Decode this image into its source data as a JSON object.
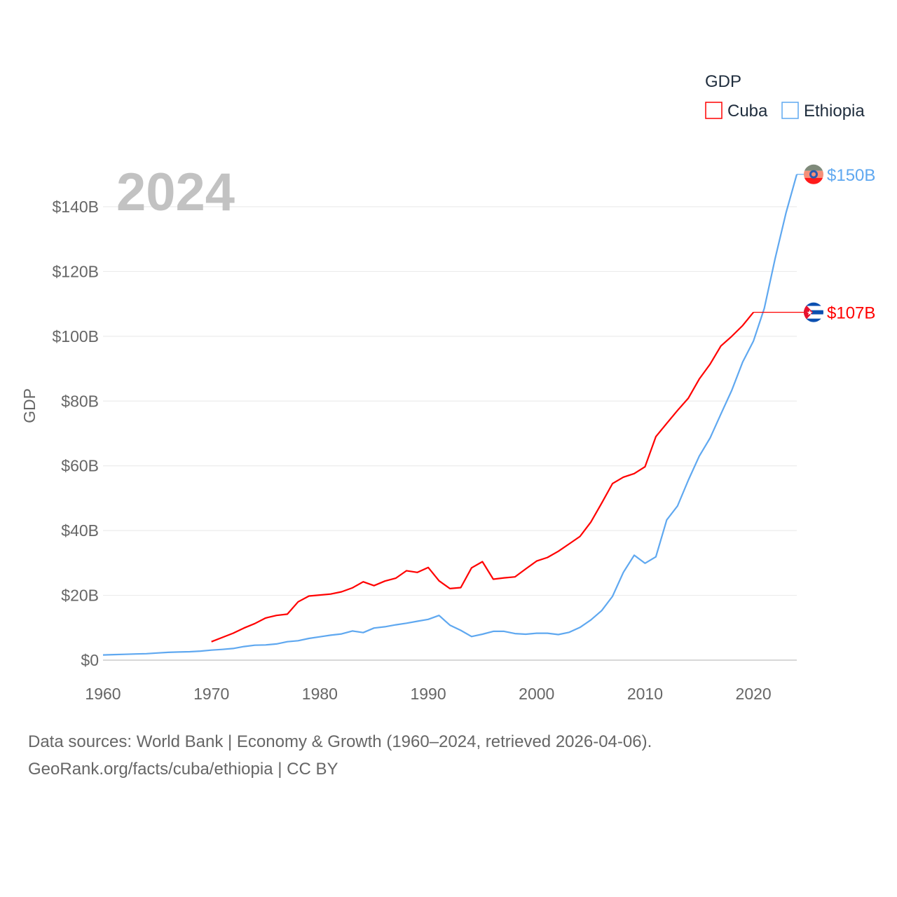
{
  "chart_data": {
    "type": "line",
    "title": "",
    "year_watermark": "2024",
    "xlabel": "",
    "ylabel": "GDP",
    "xlim": [
      1960,
      2024
    ],
    "ylim": [
      0,
      150
    ],
    "x_ticks": [
      "1960",
      "1970",
      "1980",
      "1990",
      "2000",
      "2010",
      "2020"
    ],
    "x_tick_values": [
      1960,
      1970,
      1980,
      1990,
      2000,
      2010,
      2020
    ],
    "y_ticks": [
      "$0",
      "$20B",
      "$40B",
      "$60B",
      "$80B",
      "$100B",
      "$120B",
      "$140B"
    ],
    "y_tick_values": [
      0,
      20,
      40,
      60,
      80,
      100,
      120,
      140
    ],
    "grid": true,
    "legend": {
      "title": "GDP",
      "placement": "top-right"
    },
    "series": [
      {
        "name": "Cuba",
        "color": "#ff0000",
        "end_label": "$107B",
        "flag": "cuba-flag",
        "x": [
          1970,
          1971,
          1972,
          1973,
          1974,
          1975,
          1976,
          1977,
          1978,
          1979,
          1980,
          1981,
          1982,
          1983,
          1984,
          1985,
          1986,
          1987,
          1988,
          1989,
          1990,
          1991,
          1992,
          1993,
          1994,
          1995,
          1996,
          1997,
          1998,
          1999,
          2000,
          2001,
          2002,
          2003,
          2004,
          2005,
          2006,
          2007,
          2008,
          2009,
          2010,
          2011,
          2012,
          2013,
          2014,
          2015,
          2016,
          2017,
          2018,
          2019,
          2020
        ],
        "values": [
          5.7,
          7.0,
          8.3,
          9.9,
          11.3,
          13.0,
          13.8,
          14.2,
          18.0,
          19.8,
          20.1,
          20.4,
          21.1,
          22.3,
          24.2,
          23.0,
          24.4,
          25.3,
          27.6,
          27.1,
          28.6,
          24.5,
          22.1,
          22.4,
          28.5,
          30.4,
          25.0,
          25.4,
          25.7,
          28.2,
          30.6,
          31.7,
          33.6,
          35.9,
          38.2,
          42.6,
          48.5,
          54.5,
          56.5,
          57.6,
          59.7,
          69.0,
          73.1,
          77.1,
          80.9,
          86.8,
          91.4,
          97.0,
          100.0,
          103.3,
          107.4
        ]
      },
      {
        "name": "Ethiopia",
        "color": "#5fa8f0",
        "end_label": "$150B",
        "flag": "ethiopia-flag",
        "x": [
          1960,
          1961,
          1962,
          1963,
          1964,
          1965,
          1966,
          1967,
          1968,
          1969,
          1970,
          1971,
          1972,
          1973,
          1974,
          1975,
          1976,
          1977,
          1978,
          1979,
          1980,
          1981,
          1982,
          1983,
          1984,
          1985,
          1986,
          1987,
          1988,
          1989,
          1990,
          1991,
          1992,
          1993,
          1994,
          1995,
          1996,
          1997,
          1998,
          1999,
          2000,
          2001,
          2002,
          2003,
          2004,
          2005,
          2006,
          2007,
          2008,
          2009,
          2010,
          2011,
          2012,
          2013,
          2014,
          2015,
          2016,
          2017,
          2018,
          2019,
          2020,
          2021,
          2022,
          2023,
          2024
        ],
        "values": [
          1.6,
          1.7,
          1.8,
          1.9,
          2.0,
          2.2,
          2.4,
          2.5,
          2.6,
          2.8,
          3.1,
          3.3,
          3.6,
          4.2,
          4.6,
          4.7,
          5.0,
          5.7,
          6.0,
          6.7,
          7.2,
          7.7,
          8.1,
          9.0,
          8.5,
          9.9,
          10.3,
          10.9,
          11.4,
          12.0,
          12.6,
          13.8,
          10.8,
          9.2,
          7.3,
          8.0,
          8.9,
          8.9,
          8.2,
          8.0,
          8.3,
          8.3,
          7.9,
          8.6,
          10.1,
          12.4,
          15.3,
          19.7,
          27.1,
          32.4,
          29.9,
          31.9,
          43.3,
          47.6,
          55.6,
          63.0,
          68.6,
          76.0,
          83.3,
          92.0,
          98.5,
          108.6,
          124.0,
          138.0,
          150.0
        ]
      }
    ]
  },
  "footer": {
    "line1": "Data sources: World Bank | Economy & Growth (1960–2024, retrieved 2026-04-06).",
    "line2": "GeoRank.org/facts/cuba/ethiopia | CC BY"
  }
}
